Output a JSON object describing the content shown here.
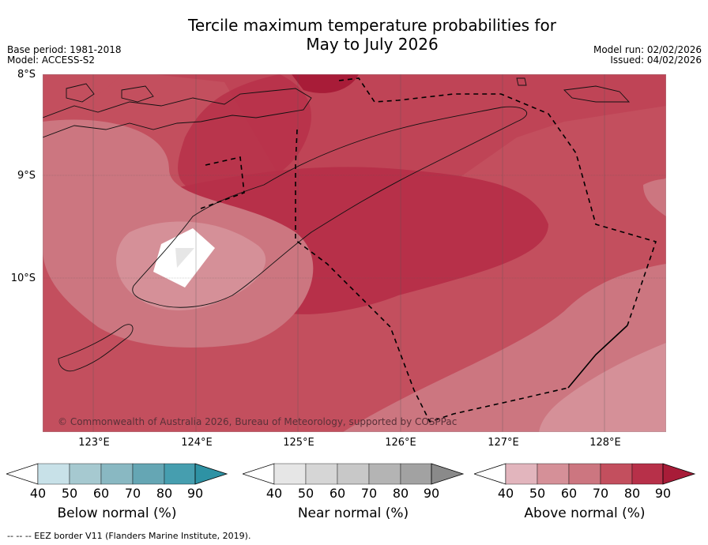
{
  "title_line1": "Tercile maximum temperature probabilities for",
  "title_line2": "May to July 2026",
  "meta_left": {
    "base_period": "Base period: 1981-2018",
    "model": "Model: ACCESS-S2"
  },
  "meta_right": {
    "model_run": "Model run: 02/02/2026",
    "issued": "Issued: 04/02/2026"
  },
  "lat_labels": [
    "8°S",
    "9°S",
    "10°S"
  ],
  "lon_labels": [
    "123°E",
    "124°E",
    "125°E",
    "126°E",
    "127°E",
    "128°E"
  ],
  "copyright": "© Commonwealth of Australia 2026, Bureau of Meteorology, supported by COSPPac",
  "colorbars": [
    {
      "label": "Below normal (%)",
      "ticks": [
        "40",
        "50",
        "60",
        "70",
        "80",
        "90"
      ],
      "colors": [
        "#c8e1e8",
        "#a6c9d0",
        "#89b8c2",
        "#65a6b4",
        "#469eaf",
        "#2e92a4"
      ]
    },
    {
      "label": "Near normal (%)",
      "ticks": [
        "40",
        "50",
        "60",
        "70",
        "80",
        "90"
      ],
      "colors": [
        "#e6e6e6",
        "#d6d6d6",
        "#c8c8c8",
        "#b4b4b4",
        "#a2a2a2",
        "#8a8a8a"
      ]
    },
    {
      "label": "Above normal (%)",
      "ticks": [
        "40",
        "50",
        "60",
        "70",
        "80",
        "90"
      ],
      "colors": [
        "#e2b5bd",
        "#d59098",
        "#cc7680",
        "#c34f5e",
        "#b73049",
        "#a81c38"
      ]
    }
  ],
  "footer": "--  --  -- EEZ border V11 (Flanders Marine Institute, 2019)."
}
